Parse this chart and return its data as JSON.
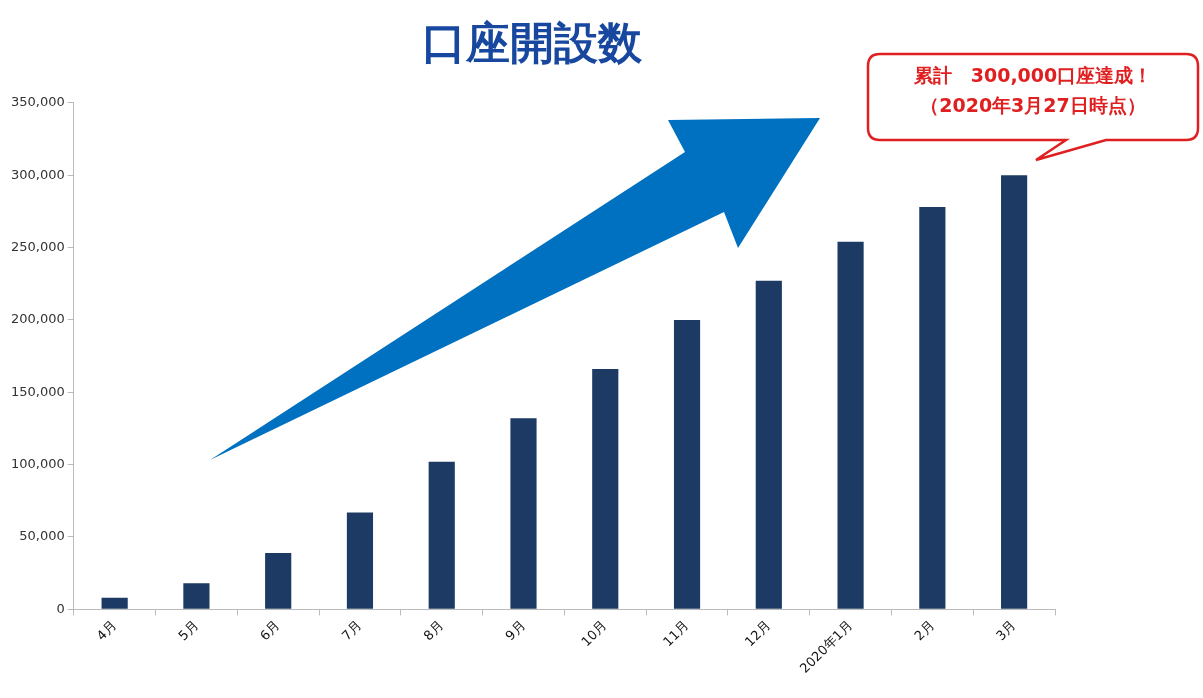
{
  "chart_data": {
    "type": "bar",
    "title": "口座開設数",
    "categories": [
      "4月",
      "5月",
      "6月",
      "7月",
      "8月",
      "9月",
      "10月",
      "11月",
      "12月",
      "2020年1月",
      "2月",
      "3月"
    ],
    "values": [
      8000,
      18000,
      39000,
      67000,
      102000,
      132000,
      166000,
      200000,
      227000,
      254000,
      278000,
      300000
    ],
    "color": "#1c3a63",
    "ylim": [
      0,
      350000
    ],
    "yticks": [
      {
        "value": 0,
        "label": "0"
      },
      {
        "value": 50000,
        "label": "50,000"
      },
      {
        "value": 100000,
        "label": "100,000"
      },
      {
        "value": 150000,
        "label": "150,000"
      },
      {
        "value": 200000,
        "label": "200,000"
      },
      {
        "value": 250000,
        "label": "250,000"
      },
      {
        "value": 300000,
        "label": "300,000"
      },
      {
        "value": 350000,
        "label": "350,000"
      }
    ],
    "grid": false,
    "annotations": [
      "累計　300,000口座達成！",
      "（2020年3月27日時点）"
    ]
  }
}
